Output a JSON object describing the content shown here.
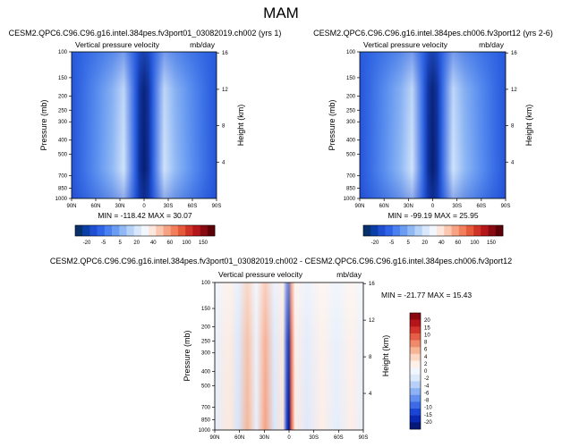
{
  "page_title": "MAM",
  "colors": {
    "panel_palette": [
      "#08306b",
      "#0b3fa8",
      "#1f4fd0",
      "#2f64e6",
      "#4a80f0",
      "#6a9cf2",
      "#8fb8f4",
      "#b6d2f6",
      "#d8e7fb",
      "#f2f7fe",
      "#fde6dc",
      "#fbc7b0",
      "#f7a383",
      "#f27f5b",
      "#e55a3a",
      "#cf3325",
      "#b4161a",
      "#8a0a12",
      "#5e0008"
    ],
    "diff_palette": [
      "#07187a",
      "#0a28b0",
      "#1a44d6",
      "#3d6be8",
      "#6390f0",
      "#8cb2f5",
      "#b6d0f8",
      "#dce9fb",
      "#f2f6fc",
      "#fdf0e7",
      "#fbd7c4",
      "#f7b597",
      "#f18a6a",
      "#e65e45",
      "#d1342a",
      "#b5141b",
      "#8a0710"
    ]
  },
  "chart_data": [
    {
      "type": "heatmap",
      "title": "CESM2.QPC6.C96.C96.g16.intel.384pes.fv3port01_03082019.ch002 (yrs 1)",
      "left_label": "Vertical pressure velocity",
      "right_label": "mb/day",
      "ylabel": "Pressure (mb)",
      "y2label": "Height (km)",
      "xticks": [
        "90N",
        "60N",
        "30N",
        "0",
        "30S",
        "60S",
        "90S"
      ],
      "yticks": [
        "100",
        "150",
        "200",
        "250",
        "300",
        "400",
        "500",
        "700",
        "850",
        "1000"
      ],
      "y2ticks": [
        "16",
        "12",
        "8",
        "4"
      ],
      "stats": "MIN = -118.42   MAX = 30.07",
      "colorbar_labels": [
        "-20",
        "-5",
        "5",
        "20",
        "40",
        "60",
        "100",
        "150"
      ]
    },
    {
      "type": "heatmap",
      "title": "CESM2.QPC6.C96.C96.g16.intel.384pes.ch006.fv3port12 (yrs 2-6)",
      "left_label": "Vertical pressure velocity",
      "right_label": "mb/day",
      "ylabel": "Pressure (mb)",
      "y2label": "Height (km)",
      "xticks": [
        "90N",
        "60N",
        "30N",
        "0",
        "30S",
        "60S",
        "90S"
      ],
      "yticks": [
        "100",
        "150",
        "200",
        "250",
        "300",
        "400",
        "500",
        "700",
        "850",
        "1000"
      ],
      "y2ticks": [
        "16",
        "12",
        "8",
        "4"
      ],
      "stats": "MIN = -99.19   MAX = 25.95",
      "colorbar_labels": [
        "-20",
        "-5",
        "5",
        "20",
        "40",
        "60",
        "100",
        "150"
      ]
    },
    {
      "type": "heatmap",
      "title": "CESM2.QPC6.C96.C96.g16.intel.384pes.fv3port01_03082019.ch002 - CESM2.QPC6.C96.C96.g16.intel.384pes.ch006.fv3port12",
      "left_label": "Vertical pressure velocity",
      "right_label": "mb/day",
      "ylabel": "Pressure (mb)",
      "y2label": "Height (km)",
      "xticks": [
        "90N",
        "60N",
        "30N",
        "0",
        "30S",
        "60S",
        "90S"
      ],
      "yticks": [
        "100",
        "150",
        "200",
        "250",
        "300",
        "400",
        "500",
        "700",
        "850",
        "1000"
      ],
      "y2ticks": [
        "16",
        "12",
        "8",
        "4"
      ],
      "stats": "MIN = -21.77   MAX = 15.43",
      "colorbar_labels": [
        "20",
        "15",
        "10",
        "8",
        "6",
        "4",
        "2",
        "0",
        "-2",
        "-4",
        "-6",
        "-8",
        "-10",
        "-15",
        "-20"
      ]
    }
  ]
}
